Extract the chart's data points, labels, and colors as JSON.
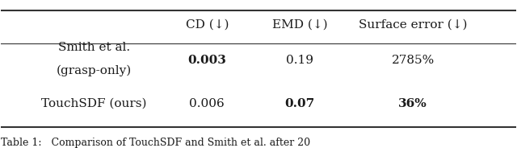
{
  "col_headers": [
    "CD (↓)",
    "EMD (↓)",
    "Surface error (↓)"
  ],
  "rows": [
    {
      "label_lines": [
        "Smith et al.",
        "(grasp-only)"
      ],
      "values": [
        "0.003",
        "0.19",
        "2785%"
      ],
      "bold": [
        true,
        false,
        false
      ]
    },
    {
      "label_lines": [
        "TouchSDF (ours)"
      ],
      "values": [
        "0.006",
        "0.07",
        "36%"
      ],
      "bold": [
        false,
        true,
        true
      ]
    }
  ],
  "text_color": "#1a1a1a",
  "line_color": "#333333",
  "font_size": 11,
  "header_font_size": 11,
  "caption": "Table 1:   Comparison of TouchSDF and Smith et al. after 20"
}
